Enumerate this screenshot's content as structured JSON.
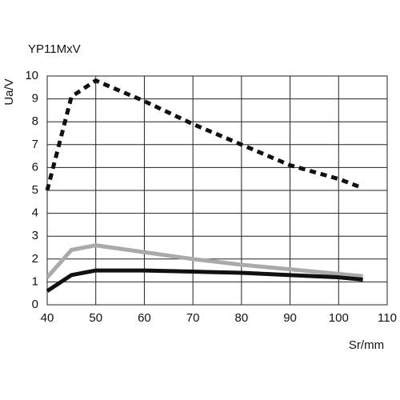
{
  "chart_data": {
    "type": "line",
    "title": "YP11MxV",
    "y_label": "Ua/V",
    "x_label": "Sr/mm",
    "x": [
      40,
      45,
      50,
      60,
      70,
      80,
      90,
      100,
      105
    ],
    "series": [
      {
        "color": "#111111",
        "dashed": true,
        "values": [
          5.0,
          9.1,
          9.8,
          8.9,
          7.9,
          7.0,
          6.1,
          5.5,
          5.1
        ]
      },
      {
        "color": "#aaaaaa",
        "dashed": false,
        "values": [
          1.2,
          2.4,
          2.6,
          2.3,
          2.0,
          1.75,
          1.55,
          1.35,
          1.25
        ]
      },
      {
        "color": "#111111",
        "dashed": false,
        "values": [
          0.6,
          1.3,
          1.5,
          1.5,
          1.45,
          1.4,
          1.3,
          1.2,
          1.1
        ]
      }
    ],
    "xlim": [
      40,
      110
    ],
    "ylim": [
      0,
      10
    ],
    "xticks": [
      40,
      50,
      60,
      70,
      80,
      90,
      100,
      110
    ],
    "yticks": [
      0,
      1,
      2,
      3,
      4,
      5,
      6,
      7,
      8,
      9,
      10
    ],
    "grid": true
  }
}
